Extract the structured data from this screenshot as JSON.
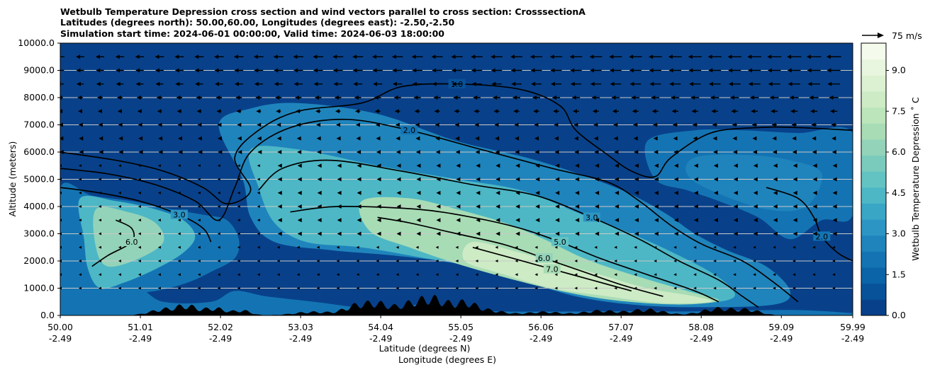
{
  "chart_data": {
    "type": "heatmap",
    "title_lines": [
      "Wetbulb Temperature Depression cross section and wind vectors parallel to cross section: CrosssectionA",
      "Latitudes (degrees north): 50.00,60.00, Longitudes (degrees east): -2.50,-2.50",
      "Simulation start time: 2024-06-01 00:00:00, Valid time: 2024-06-03 18:00:00"
    ],
    "ylabel": "Altitude (meters)",
    "xlabel_lines": [
      "Latitude (degrees N)",
      "Longitude (degrees E)"
    ],
    "xlim": [
      50.0,
      59.99
    ],
    "ylim": [
      0,
      10000
    ],
    "y_ticks": [
      0,
      1000,
      2000,
      3000,
      4000,
      5000,
      6000,
      7000,
      8000,
      9000,
      10000
    ],
    "y_tick_labels": [
      "0.0",
      "1000.0",
      "2000.0",
      "3000.0",
      "4000.0",
      "5000.0",
      "6000.0",
      "7000.0",
      "8000.0",
      "9000.0",
      "10000.0"
    ],
    "x_ticks": [
      {
        "lat": 50.0,
        "lat_label": "50.00",
        "lon_label": "-2.49"
      },
      {
        "lat": 51.01,
        "lat_label": "51.01",
        "lon_label": "-2.49"
      },
      {
        "lat": 52.02,
        "lat_label": "52.02",
        "lon_label": "-2.49"
      },
      {
        "lat": 53.03,
        "lat_label": "53.03",
        "lon_label": "-2.49"
      },
      {
        "lat": 54.04,
        "lat_label": "54.04",
        "lon_label": "-2.49"
      },
      {
        "lat": 55.05,
        "lat_label": "55.05",
        "lon_label": "-2.49"
      },
      {
        "lat": 56.06,
        "lat_label": "56.06",
        "lon_label": "-2.49"
      },
      {
        "lat": 57.07,
        "lat_label": "57.07",
        "lon_label": "-2.49"
      },
      {
        "lat": 58.08,
        "lat_label": "58.08",
        "lon_label": "-2.49"
      },
      {
        "lat": 59.09,
        "lat_label": "59.09",
        "lon_label": "-2.49"
      },
      {
        "lat": 59.99,
        "lat_label": "59.99",
        "lon_label": "-2.49"
      }
    ],
    "grid": "horizontal",
    "colorbar": {
      "label": "Wetbulb Temperature Depression ˚ C",
      "range": [
        0,
        10
      ],
      "ticks": [
        0,
        1.5,
        3.0,
        4.5,
        6.0,
        7.5,
        9.0
      ],
      "tick_labels": [
        "0.0",
        "1.5",
        "3.0",
        "4.5",
        "6.0",
        "7.5",
        "9.0"
      ],
      "colors": [
        "#08418a",
        "#08529a",
        "#0b63a8",
        "#1474b3",
        "#1f84bc",
        "#2c95c4",
        "#3aa6c6",
        "#4db7c5",
        "#63c3c3",
        "#7bcbbd",
        "#93d3b9",
        "#a8dcb5",
        "#bce5bb",
        "#cdebc5",
        "#dcf1d1",
        "#e9f6df",
        "#f4fbec"
      ],
      "position": "right"
    },
    "quiver_key": {
      "label": "75 m/s",
      "position": "top-right"
    },
    "field_regions": [
      {
        "name": "background",
        "value": 0.8
      },
      {
        "name": "low-level-1",
        "value": 2.0,
        "points": [
          [
            50.0,
            0
          ],
          [
            50.0,
            2000
          ],
          [
            50.3,
            1800
          ],
          [
            50.6,
            1200
          ],
          [
            51.0,
            1000
          ],
          [
            51.3,
            500
          ],
          [
            51.9,
            500
          ],
          [
            52.2,
            900
          ],
          [
            52.6,
            700
          ],
          [
            53.2,
            500
          ],
          [
            54.2,
            150
          ],
          [
            54.5,
            400
          ],
          [
            55.0,
            300
          ],
          [
            55.5,
            150
          ],
          [
            57.0,
            150
          ],
          [
            58.0,
            150
          ],
          [
            59.2,
            200
          ],
          [
            59.9,
            100
          ],
          [
            59.99,
            0
          ]
        ]
      },
      {
        "name": "left-plume-2",
        "value": 2.2,
        "points": [
          [
            50.0,
            4700
          ],
          [
            50.4,
            4400
          ],
          [
            50.9,
            4200
          ],
          [
            51.4,
            3900
          ],
          [
            51.8,
            3700
          ],
          [
            52.1,
            3500
          ],
          [
            52.25,
            2800
          ],
          [
            52.2,
            2100
          ],
          [
            51.9,
            1600
          ],
          [
            51.6,
            1200
          ],
          [
            51.2,
            900
          ],
          [
            50.7,
            800
          ],
          [
            50.3,
            1200
          ],
          [
            50.0,
            1400
          ]
        ]
      },
      {
        "name": "left-plume-4",
        "value": 4.3,
        "points": [
          [
            50.25,
            4300
          ],
          [
            50.7,
            4200
          ],
          [
            51.2,
            3900
          ],
          [
            51.55,
            3500
          ],
          [
            51.7,
            2900
          ],
          [
            51.55,
            2300
          ],
          [
            51.2,
            1700
          ],
          [
            50.8,
            1200
          ],
          [
            50.5,
            1000
          ],
          [
            50.35,
            1700
          ],
          [
            50.3,
            2800
          ]
        ]
      },
      {
        "name": "left-plume-6",
        "value": 6.0,
        "points": [
          [
            50.45,
            3900
          ],
          [
            50.85,
            3800
          ],
          [
            51.2,
            3400
          ],
          [
            51.3,
            2700
          ],
          [
            51.0,
            2100
          ],
          [
            50.6,
            1800
          ],
          [
            50.45,
            2500
          ]
        ]
      },
      {
        "name": "middle-plume-2",
        "value": 2.8,
        "points": [
          [
            52.0,
            7000
          ],
          [
            52.4,
            7600
          ],
          [
            53.0,
            7800
          ],
          [
            54.0,
            7400
          ],
          [
            55.0,
            6400
          ],
          [
            56.0,
            5700
          ],
          [
            57.0,
            4700
          ],
          [
            57.6,
            3800
          ],
          [
            58.0,
            3000
          ],
          [
            58.4,
            2400
          ],
          [
            58.9,
            1800
          ],
          [
            59.2,
            900
          ],
          [
            59.0,
            400
          ],
          [
            58.0,
            300
          ],
          [
            57.2,
            400
          ],
          [
            56.5,
            700
          ],
          [
            55.8,
            1300
          ],
          [
            55.0,
            1900
          ],
          [
            54.2,
            2200
          ],
          [
            53.4,
            2400
          ],
          [
            52.7,
            2700
          ],
          [
            52.4,
            3600
          ],
          [
            52.3,
            5000
          ]
        ]
      },
      {
        "name": "middle-plume-4",
        "value": 4.6,
        "points": [
          [
            52.4,
            6100
          ],
          [
            53.0,
            6100
          ],
          [
            54.0,
            5500
          ],
          [
            55.0,
            5000
          ],
          [
            55.8,
            4600
          ],
          [
            56.5,
            3800
          ],
          [
            57.2,
            3000
          ],
          [
            57.8,
            2200
          ],
          [
            58.3,
            1400
          ],
          [
            58.5,
            700
          ],
          [
            58.1,
            450
          ],
          [
            57.4,
            500
          ],
          [
            56.8,
            700
          ],
          [
            56.2,
            1000
          ],
          [
            55.4,
            1700
          ],
          [
            54.6,
            2100
          ],
          [
            53.8,
            2500
          ],
          [
            53.1,
            2700
          ],
          [
            52.7,
            3400
          ],
          [
            52.5,
            4700
          ]
        ]
      },
      {
        "name": "middle-plume-6",
        "value": 6.5,
        "points": [
          [
            53.8,
            4200
          ],
          [
            54.4,
            4300
          ],
          [
            55.0,
            3900
          ],
          [
            55.6,
            3400
          ],
          [
            56.1,
            2800
          ],
          [
            56.6,
            2100
          ],
          [
            57.2,
            1500
          ],
          [
            57.9,
            900
          ],
          [
            58.3,
            550
          ],
          [
            57.8,
            400
          ],
          [
            57.0,
            550
          ],
          [
            56.3,
            900
          ],
          [
            55.6,
            1400
          ],
          [
            55.0,
            1900
          ],
          [
            54.4,
            2500
          ],
          [
            53.9,
            3100
          ]
        ]
      },
      {
        "name": "middle-plume-8",
        "value": 8.2,
        "points": [
          [
            55.2,
            2700
          ],
          [
            55.8,
            2300
          ],
          [
            56.3,
            1900
          ],
          [
            56.8,
            1500
          ],
          [
            57.4,
            1000
          ],
          [
            58.0,
            700
          ],
          [
            58.2,
            500
          ],
          [
            57.6,
            450
          ],
          [
            56.9,
            700
          ],
          [
            56.2,
            1000
          ],
          [
            55.6,
            1500
          ],
          [
            55.1,
            2000
          ]
        ]
      },
      {
        "name": "upper-right-2",
        "value": 2.0,
        "points": [
          [
            57.4,
            6400
          ],
          [
            58.0,
            6800
          ],
          [
            58.6,
            6800
          ],
          [
            59.3,
            6700
          ],
          [
            59.99,
            6700
          ],
          [
            59.99,
            3700
          ],
          [
            59.6,
            3500
          ],
          [
            59.2,
            2800
          ],
          [
            58.8,
            3600
          ],
          [
            58.3,
            4200
          ],
          [
            57.9,
            4600
          ],
          [
            57.5,
            5000
          ]
        ]
      },
      {
        "name": "upper-right-2b",
        "value": 2.6,
        "points": [
          [
            58.0,
            5800
          ],
          [
            58.6,
            5900
          ],
          [
            59.2,
            5700
          ],
          [
            59.6,
            5200
          ],
          [
            59.4,
            4000
          ],
          [
            58.9,
            3900
          ],
          [
            58.2,
            4600
          ],
          [
            57.9,
            5200
          ]
        ]
      }
    ],
    "contours": [
      {
        "level": "1.0",
        "points": [
          [
            50.0,
            6000
          ],
          [
            50.7,
            5700
          ],
          [
            51.3,
            5300
          ],
          [
            51.8,
            4700
          ],
          [
            52.1,
            4100
          ],
          [
            52.4,
            4600
          ],
          [
            52.2,
            5800
          ],
          [
            52.5,
            6800
          ],
          [
            53.0,
            7500
          ],
          [
            53.8,
            7800
          ],
          [
            54.3,
            8400
          ],
          [
            55.0,
            8500
          ],
          [
            55.8,
            8300
          ],
          [
            56.3,
            7700
          ],
          [
            56.5,
            6800
          ],
          [
            56.9,
            5900
          ],
          [
            57.2,
            5300
          ],
          [
            57.5,
            5100
          ],
          [
            57.7,
            5800
          ],
          [
            58.2,
            6700
          ],
          [
            58.8,
            6900
          ],
          [
            59.3,
            6900
          ],
          [
            59.99,
            6800
          ]
        ]
      },
      {
        "level": "2.0",
        "points": [
          [
            50.0,
            5400
          ],
          [
            50.6,
            5200
          ],
          [
            51.2,
            4800
          ],
          [
            51.7,
            4200
          ],
          [
            52.0,
            3500
          ],
          [
            52.2,
            4700
          ],
          [
            52.4,
            6000
          ],
          [
            52.9,
            6900
          ],
          [
            53.6,
            7200
          ],
          [
            54.4,
            6800
          ],
          [
            55.3,
            6100
          ],
          [
            56.2,
            5400
          ],
          [
            56.9,
            4900
          ],
          [
            57.3,
            4200
          ],
          [
            57.7,
            3300
          ],
          [
            58.1,
            2600
          ],
          [
            58.6,
            2000
          ],
          [
            59.0,
            1200
          ],
          [
            59.3,
            500
          ]
        ]
      },
      {
        "level": "3.0",
        "points": [
          [
            50.0,
            4700
          ],
          [
            50.5,
            4500
          ],
          [
            51.0,
            4200
          ],
          [
            51.5,
            3700
          ],
          [
            51.8,
            3200
          ],
          [
            51.9,
            2700
          ]
        ]
      },
      {
        "level": "3.0",
        "points": [
          [
            52.5,
            4600
          ],
          [
            52.8,
            5400
          ],
          [
            53.4,
            5700
          ],
          [
            54.3,
            5300
          ],
          [
            55.2,
            4800
          ],
          [
            56.0,
            4400
          ],
          [
            56.7,
            3600
          ],
          [
            57.3,
            2800
          ],
          [
            57.8,
            2000
          ],
          [
            58.3,
            1300
          ],
          [
            58.6,
            700
          ],
          [
            58.8,
            300
          ]
        ]
      },
      {
        "level": "5.0",
        "points": [
          [
            52.9,
            3800
          ],
          [
            53.5,
            4000
          ],
          [
            54.5,
            3900
          ],
          [
            55.2,
            3600
          ],
          [
            55.8,
            3200
          ],
          [
            56.3,
            2700
          ],
          [
            56.8,
            2100
          ],
          [
            57.4,
            1500
          ],
          [
            58.0,
            900
          ],
          [
            58.3,
            500
          ]
        ]
      },
      {
        "level": "6.0",
        "points": [
          [
            50.7,
            3500
          ],
          [
            50.9,
            3200
          ],
          [
            50.9,
            2700
          ],
          [
            50.6,
            2200
          ],
          [
            50.4,
            1800
          ]
        ]
      },
      {
        "level": "6.0",
        "points": [
          [
            54.0,
            3600
          ],
          [
            54.4,
            3400
          ],
          [
            55.0,
            3000
          ],
          [
            55.6,
            2600
          ],
          [
            56.1,
            2100
          ],
          [
            56.6,
            1600
          ],
          [
            57.1,
            1100
          ],
          [
            57.6,
            700
          ]
        ]
      },
      {
        "level": "7.0",
        "points": [
          [
            55.2,
            2500
          ],
          [
            55.7,
            2100
          ],
          [
            56.2,
            1700
          ],
          [
            56.7,
            1300
          ],
          [
            57.2,
            900
          ]
        ]
      },
      {
        "level": "2.0",
        "points": [
          [
            58.9,
            4700
          ],
          [
            59.3,
            4300
          ],
          [
            59.5,
            3600
          ],
          [
            59.6,
            2900
          ],
          [
            59.8,
            2300
          ],
          [
            59.99,
            2000
          ]
        ]
      }
    ],
    "wind_vectors": {
      "u_speed_ms_by_altitude": [
        {
          "alt": 9500,
          "u": -14
        },
        {
          "alt": 9000,
          "u": -13
        },
        {
          "alt": 8500,
          "u": -12
        },
        {
          "alt": 8000,
          "u": -9
        },
        {
          "alt": 7500,
          "u": -7
        },
        {
          "alt": 7000,
          "u": -5
        },
        {
          "alt": 6500,
          "u": -4
        },
        {
          "alt": 6000,
          "u": -3
        },
        {
          "alt": 5500,
          "u": -2
        },
        {
          "alt": 5000,
          "u": -2
        },
        {
          "alt": 4500,
          "u": -2
        },
        {
          "alt": 4000,
          "u": -2
        },
        {
          "alt": 3500,
          "u": -2
        },
        {
          "alt": 3000,
          "u": -2
        },
        {
          "alt": 2500,
          "u": -1
        },
        {
          "alt": 2000,
          "u": -1
        },
        {
          "alt": 1500,
          "u": -1
        },
        {
          "alt": 1000,
          "u": -1
        }
      ],
      "east_boost": 1.8
    }
  }
}
